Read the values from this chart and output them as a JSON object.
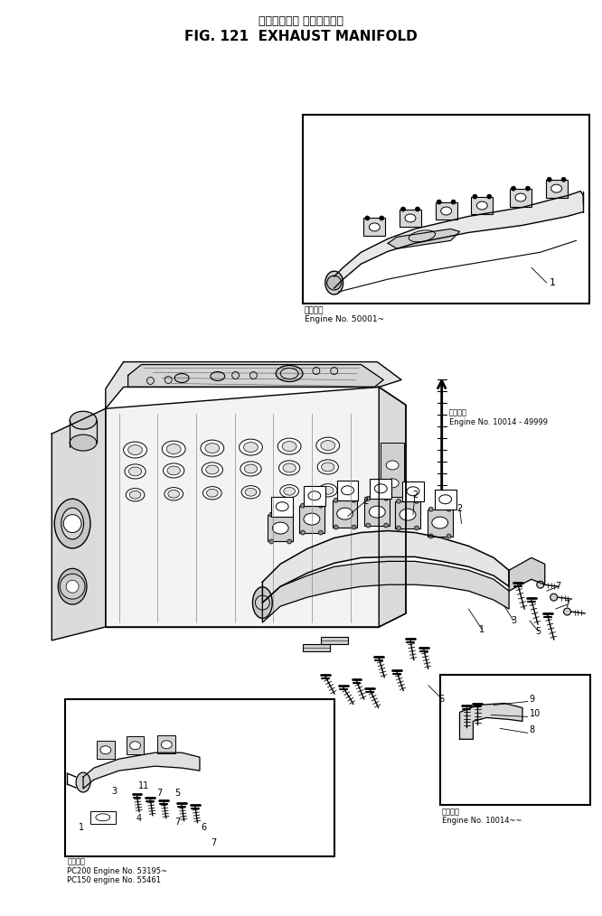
{
  "title_jp": "エキゾースト マニホールド",
  "title_en": "FIG. 121  EXHAUST MANIFOLD",
  "bg_color": "#ffffff",
  "lc": "#000000",
  "fig_w": 6.66,
  "fig_h": 10.14,
  "inset1_caption": "適用番号\nEngine No. 50001~",
  "inset2_caption": "適用番号\nPC200 Engine No. 53195~\nPC150 engine No. 55461",
  "inset3_caption": "適用番号\nEngine No. 10014~~",
  "eng_no_caption": "適用番号\nEngine No. 10014 - 49999"
}
